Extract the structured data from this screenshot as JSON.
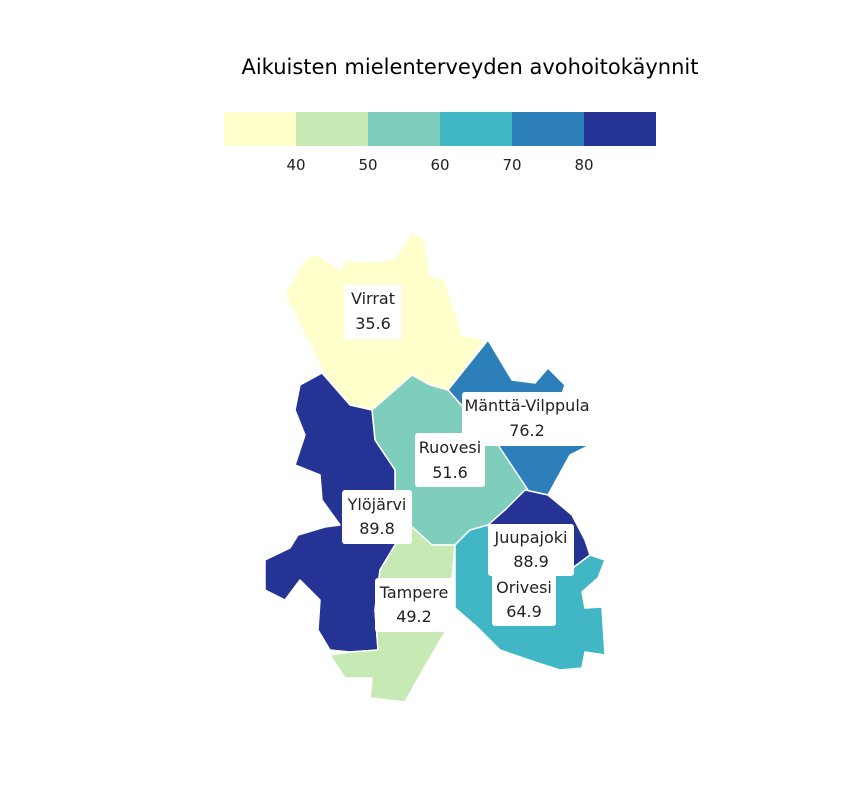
{
  "title": "Aikuisten mielenterveyden avohoitokäynnit",
  "legend": {
    "bins": [
      {
        "color": "#ffffcc"
      },
      {
        "color": "#c7e9b4"
      },
      {
        "color": "#7fcdbb"
      },
      {
        "color": "#41b6c4"
      },
      {
        "color": "#2c7fb8"
      },
      {
        "color": "#253494"
      }
    ],
    "breaks": [
      "40",
      "50",
      "60",
      "70",
      "80"
    ]
  },
  "regions": [
    {
      "id": "virrat",
      "name": "Virrat",
      "value": "35.6",
      "color": "#ffffcc"
    },
    {
      "id": "ruovesi",
      "name": "Ruovesi",
      "value": "51.6",
      "color": "#7fcdbb"
    },
    {
      "id": "mantta",
      "name": "Mänttä-Vilppula",
      "value": "76.2",
      "color": "#2c7fb8"
    },
    {
      "id": "ylojarvi",
      "name": "Ylöjärvi",
      "value": "89.8",
      "color": "#253494"
    },
    {
      "id": "juupajoki",
      "name": "Juupajoki",
      "value": "88.9",
      "color": "#253494"
    },
    {
      "id": "tampere",
      "name": "Tampere",
      "value": "49.2",
      "color": "#c7e9b4"
    },
    {
      "id": "orivesi",
      "name": "Orivesi",
      "value": "64.9",
      "color": "#41b6c4"
    }
  ]
}
